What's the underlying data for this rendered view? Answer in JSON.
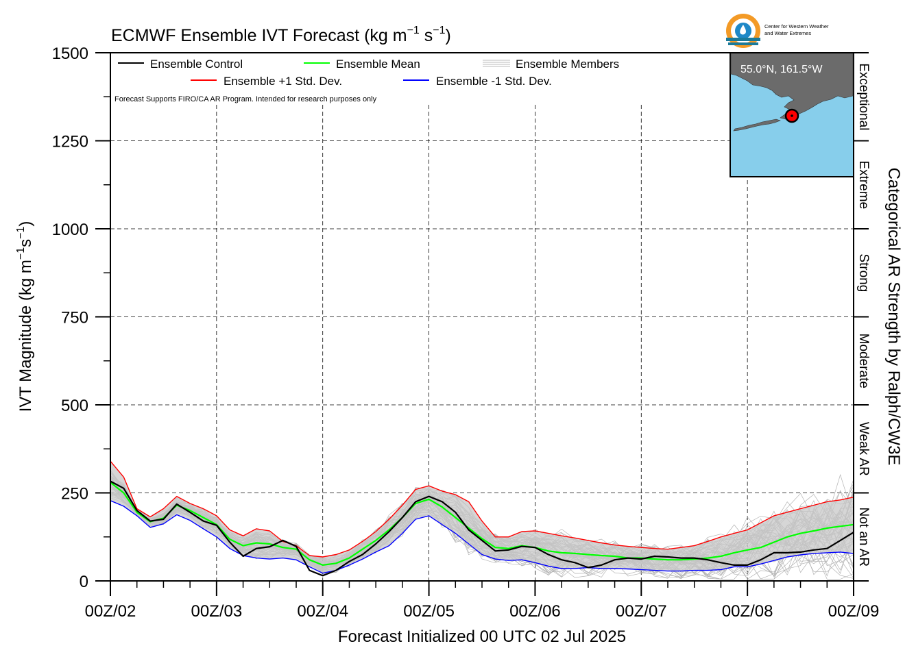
{
  "header": {
    "title_main": "ECMWF Ensemble IVT Forecast (kg m",
    "title_sup1": "−1",
    "title_mid": " s",
    "title_sup2": "−1",
    "title_end": ")"
  },
  "logo": {
    "line1": "Center for Western Weather",
    "line2": "and Water Extremes",
    "colors": {
      "ring_orange": "#f39a26",
      "ring_blue": "#1e88c7",
      "wave_teal": "#1a7a9a"
    }
  },
  "inset_map": {
    "label": "55.0°N, 161.5°W",
    "ocean_color": "#87ceeb",
    "land_color": "#6b6b6b",
    "marker_color": "#ff0000"
  },
  "legend": {
    "control": "Ensemble Control",
    "mean": "Ensemble Mean",
    "members": "Ensemble Members",
    "plus_sd": "Ensemble +1 Std. Dev.",
    "minus_sd": "Ensemble -1 Std. Dev.",
    "note": "Forecast Supports FIRO/CA AR Program. Intended for research purposes only"
  },
  "chart_data": {
    "type": "line",
    "xlabel": "Forecast Initialized 00 UTC 02 Jul 2025",
    "ylabel_main": "IVT Magnitude (kg m",
    "ylabel_sup1": "−1",
    "ylabel_mid": "s",
    "ylabel_sup2": "−1",
    "ylabel_end": ")",
    "right_label": "Categorical AR Strength by Ralph/CW3E",
    "ylim": [
      0,
      1500
    ],
    "xlim_hours": [
      0,
      168
    ],
    "y_ticks": [
      {
        "value": 0,
        "label": "0"
      },
      {
        "value": 250,
        "label": "250"
      },
      {
        "value": 500,
        "label": "500"
      },
      {
        "value": 750,
        "label": "750"
      },
      {
        "value": 1000,
        "label": "1000"
      },
      {
        "value": 1250,
        "label": "1250"
      },
      {
        "value": 1500,
        "label": "1500"
      }
    ],
    "x_ticks": [
      {
        "hour": 0,
        "label": "00Z/02"
      },
      {
        "hour": 24,
        "label": "00Z/03"
      },
      {
        "hour": 48,
        "label": "00Z/04"
      },
      {
        "hour": 72,
        "label": "00Z/05"
      },
      {
        "hour": 96,
        "label": "00Z/06"
      },
      {
        "hour": 120,
        "label": "00Z/07"
      },
      {
        "hour": 144,
        "label": "00Z/08"
      },
      {
        "hour": 168,
        "label": "00Z/09"
      }
    ],
    "categories_right": [
      {
        "label": "Not an AR",
        "from": 0,
        "to": 250
      },
      {
        "label": "Weak AR",
        "from": 250,
        "to": 500
      },
      {
        "label": "Moderate",
        "from": 500,
        "to": 750
      },
      {
        "label": "Strong",
        "from": 750,
        "to": 1000
      },
      {
        "label": "Extreme",
        "from": 1000,
        "to": 1250
      },
      {
        "label": "Exceptional",
        "from": 1250,
        "to": 1500
      }
    ],
    "x_hours": [
      0,
      3,
      6,
      9,
      12,
      15,
      18,
      21,
      24,
      27,
      30,
      33,
      36,
      39,
      42,
      45,
      48,
      51,
      54,
      57,
      60,
      63,
      66,
      69,
      72,
      75,
      78,
      81,
      84,
      87,
      90,
      93,
      96,
      99,
      102,
      105,
      108,
      111,
      114,
      117,
      120,
      123,
      126,
      129,
      132,
      135,
      138,
      141,
      144,
      147,
      150,
      153,
      156,
      159,
      162,
      165,
      168
    ],
    "series": [
      {
        "name": "Ensemble Control",
        "color": "#000000",
        "values": [
          283,
          263,
          200,
          170,
          175,
          218,
          195,
          170,
          158,
          110,
          70,
          92,
          97,
          115,
          98,
          30,
          15,
          30,
          55,
          75,
          105,
          140,
          180,
          225,
          240,
          225,
          195,
          145,
          115,
          85,
          88,
          98,
          95,
          75,
          60,
          52,
          38,
          45,
          60,
          65,
          62,
          70,
          68,
          65,
          65,
          60,
          52,
          45,
          45,
          60,
          80,
          80,
          82,
          88,
          92,
          115,
          138
        ]
      },
      {
        "name": "Ensemble Mean",
        "color": "#00ff00",
        "values": [
          280,
          250,
          195,
          168,
          178,
          215,
          200,
          180,
          160,
          118,
          100,
          108,
          105,
          95,
          90,
          60,
          45,
          50,
          65,
          90,
          115,
          145,
          180,
          220,
          232,
          210,
          180,
          150,
          120,
          95,
          92,
          100,
          95,
          85,
          80,
          78,
          75,
          72,
          70,
          65,
          65,
          62,
          60,
          60,
          62,
          65,
          70,
          80,
          88,
          95,
          110,
          125,
          135,
          142,
          150,
          155,
          160
        ]
      },
      {
        "name": "Ensemble +1 Std. Dev.",
        "color": "#ff0000",
        "values": [
          340,
          295,
          205,
          182,
          205,
          240,
          220,
          205,
          185,
          145,
          128,
          148,
          142,
          112,
          100,
          72,
          68,
          75,
          88,
          112,
          140,
          175,
          215,
          260,
          270,
          255,
          245,
          225,
          170,
          125,
          125,
          140,
          142,
          135,
          128,
          122,
          115,
          108,
          102,
          98,
          95,
          92,
          90,
          95,
          100,
          112,
          125,
          135,
          145,
          165,
          185,
          195,
          205,
          215,
          225,
          230,
          238
        ]
      },
      {
        "name": "Ensemble -1 Std. Dev.",
        "color": "#0000ff",
        "values": [
          228,
          212,
          185,
          152,
          162,
          188,
          172,
          148,
          125,
          92,
          72,
          65,
          62,
          65,
          60,
          40,
          22,
          30,
          45,
          62,
          82,
          100,
          135,
          175,
          185,
          160,
          135,
          105,
          75,
          62,
          58,
          60,
          52,
          42,
          35,
          35,
          38,
          35,
          35,
          34,
          32,
          30,
          28,
          28,
          30,
          30,
          32,
          40,
          40,
          48,
          58,
          68,
          74,
          78,
          80,
          82,
          78
        ]
      }
    ]
  }
}
